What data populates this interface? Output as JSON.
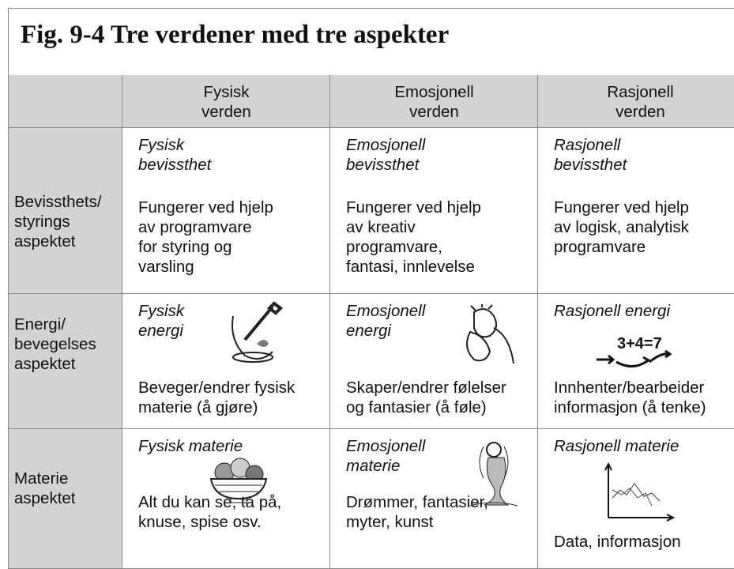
{
  "title": "Fig. 9-4  Tre verdener med tre aspekter",
  "table": {
    "columns": [
      "Fysisk\nverden",
      "Emosjonell\nverden",
      "Rasjonell\nverden"
    ],
    "rows": [
      {
        "header": "Bevissthets/\nstyrings\naspektet",
        "cells": [
          {
            "heading": "Fysisk\nbevissthet",
            "text": "Fungerer ved hjelp\nav programvare\nfor styring og\nvarsling"
          },
          {
            "heading": "Emosjonell\nbevissthet",
            "text": "Fungerer ved hjelp\nav kreativ\nprogramvare,\nfantasi, innlevelse"
          },
          {
            "heading": "Rasjonell\nbevissthet",
            "text": "Fungerer ved hjelp\nav logisk, analytisk\nprogramvare"
          }
        ]
      },
      {
        "header": "Energi/\nbevegelses\naspektet",
        "cells": [
          {
            "heading": "Fysisk\nenergi",
            "text": "Beveger/endrer fysisk\nmaterie (å gjøre)"
          },
          {
            "heading": "Emosjonell\nenergi",
            "text": "Skaper/endrer følelser\nog fantasier (å føle)"
          },
          {
            "heading": "Rasjonell energi",
            "formula": "3+4=7",
            "text": "Innhenter/bearbeider\ninformasjon (å tenke)"
          }
        ]
      },
      {
        "header": "Materie\naspektet",
        "cells": [
          {
            "heading": "Fysisk materie",
            "text": "Alt du kan se, ta på,\nknuse, spise osv."
          },
          {
            "heading": "Emosjonell\nmaterie",
            "text": "Drømmer, fantasier,\nmyter, kunst"
          },
          {
            "heading": "Rasjonell materie",
            "text": "Data, informasjon"
          }
        ]
      }
    ]
  }
}
